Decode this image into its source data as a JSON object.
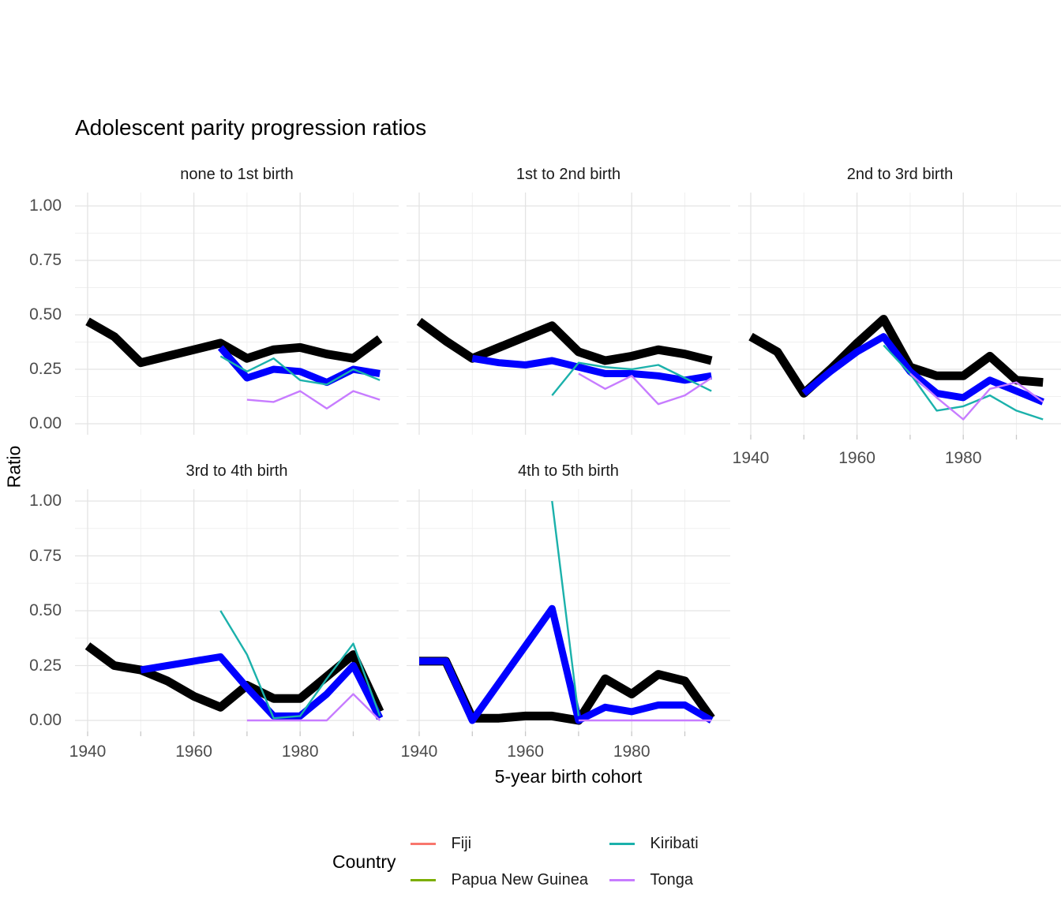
{
  "title": "Adolescent parity progression ratios",
  "axes": {
    "y_title": "Ratio",
    "x_title": "5-year birth cohort",
    "y_tick_labels": [
      "1.00",
      "0.75",
      "0.50",
      "0.25",
      "0.00"
    ],
    "x_tick_labels": [
      "1940",
      "1960",
      "1980"
    ]
  },
  "legend": {
    "title": "Country",
    "entries": [
      {
        "label": "Fiji",
        "color": "#f8766d"
      },
      {
        "label": "Papua New Guinea",
        "color": "#7cae00"
      },
      {
        "label": "Kiribati",
        "color": "#1bb1ab"
      },
      {
        "label": "Tonga",
        "color": "#c77cff"
      }
    ]
  },
  "chart_data": {
    "type": "line",
    "x": [
      1940,
      1945,
      1950,
      1955,
      1960,
      1965,
      1970,
      1975,
      1980,
      1985,
      1990,
      1995
    ],
    "xlabel": "5-year birth cohort",
    "ylabel": "Ratio",
    "ylim": [
      0,
      1
    ],
    "x_breaks": [
      1940,
      1960,
      1980
    ],
    "y_breaks": [
      0,
      0.25,
      0.5,
      0.75,
      1
    ],
    "grid": "major and minor, light gray on white",
    "legend_position": "bottom",
    "facets": [
      {
        "label": "none to 1st birth",
        "series": [
          {
            "name": "black-line",
            "color": "#000000",
            "width": 11,
            "values": [
              0.47,
              0.4,
              0.28,
              0.31,
              0.34,
              0.37,
              0.3,
              0.34,
              0.35,
              0.32,
              0.3,
              0.39
            ]
          },
          {
            "name": "blue-line",
            "color": "#0000ff",
            "width": 9,
            "values": [
              null,
              null,
              null,
              null,
              null,
              0.35,
              0.21,
              0.25,
              0.24,
              0.19,
              0.25,
              0.23
            ]
          },
          {
            "name": "Kiribati",
            "color": "#1bb1ab",
            "width": 2.4,
            "values": [
              null,
              null,
              null,
              null,
              null,
              0.31,
              0.24,
              0.3,
              0.2,
              0.18,
              0.25,
              0.2
            ]
          },
          {
            "name": "Tonga",
            "color": "#c77cff",
            "width": 2.4,
            "values": [
              null,
              null,
              null,
              null,
              null,
              null,
              0.11,
              0.1,
              0.15,
              0.07,
              0.15,
              0.11
            ]
          }
        ]
      },
      {
        "label": "1st to 2nd birth",
        "series": [
          {
            "name": "black-line",
            "color": "#000000",
            "width": 11,
            "values": [
              0.47,
              0.38,
              0.3,
              0.35,
              0.4,
              0.45,
              0.33,
              0.29,
              0.31,
              0.34,
              0.32,
              0.29
            ]
          },
          {
            "name": "blue-line",
            "color": "#0000ff",
            "width": 9,
            "values": [
              null,
              null,
              0.3,
              0.28,
              0.27,
              0.29,
              0.26,
              0.23,
              0.23,
              0.22,
              0.2,
              0.22
            ]
          },
          {
            "name": "Kiribati",
            "color": "#1bb1ab",
            "width": 2.4,
            "values": [
              null,
              null,
              null,
              null,
              null,
              0.13,
              0.28,
              0.26,
              0.25,
              0.27,
              0.21,
              0.15
            ]
          },
          {
            "name": "Tonga",
            "color": "#c77cff",
            "width": 2.4,
            "values": [
              null,
              null,
              null,
              null,
              null,
              null,
              0.23,
              0.16,
              0.22,
              0.09,
              0.13,
              0.21
            ]
          }
        ]
      },
      {
        "label": "2nd to 3rd birth",
        "series": [
          {
            "name": "black-line",
            "color": "#000000",
            "width": 11,
            "values": [
              0.4,
              0.33,
              0.14,
              0.25,
              0.37,
              0.48,
              0.26,
              0.22,
              0.22,
              0.31,
              0.2,
              0.19
            ]
          },
          {
            "name": "blue-line",
            "color": "#0000ff",
            "width": 9,
            "values": [
              null,
              null,
              0.14,
              0.24,
              0.33,
              0.4,
              0.24,
              0.14,
              0.12,
              0.2,
              0.15,
              0.1
            ]
          },
          {
            "name": "Kiribati",
            "color": "#1bb1ab",
            "width": 2.4,
            "values": [
              null,
              null,
              null,
              null,
              null,
              0.36,
              0.23,
              0.06,
              0.08,
              0.13,
              0.06,
              0.02
            ]
          },
          {
            "name": "Tonga",
            "color": "#c77cff",
            "width": 2.4,
            "values": [
              null,
              null,
              null,
              null,
              null,
              null,
              0.23,
              0.12,
              0.02,
              0.16,
              0.19,
              0.1
            ]
          }
        ]
      },
      {
        "label": "3rd to 4th birth",
        "series": [
          {
            "name": "black-line",
            "color": "#000000",
            "width": 11,
            "values": [
              0.34,
              0.25,
              0.23,
              0.18,
              0.11,
              0.06,
              0.16,
              0.1,
              0.1,
              0.2,
              0.3,
              0.04
            ]
          },
          {
            "name": "blue-line",
            "color": "#0000ff",
            "width": 9,
            "values": [
              null,
              null,
              0.23,
              0.25,
              0.27,
              0.29,
              0.15,
              0.02,
              0.02,
              0.12,
              0.25,
              0.01
            ]
          },
          {
            "name": "Kiribati",
            "color": "#1bb1ab",
            "width": 2.4,
            "values": [
              null,
              null,
              null,
              null,
              null,
              0.5,
              0.3,
              0.01,
              0.02,
              0.19,
              0.35,
              0.02
            ]
          },
          {
            "name": "Tonga",
            "color": "#c77cff",
            "width": 2.4,
            "values": [
              null,
              null,
              null,
              null,
              null,
              null,
              0.0,
              0.0,
              0.0,
              0.0,
              0.12,
              0.0
            ]
          }
        ]
      },
      {
        "label": "4th to 5th birth",
        "series": [
          {
            "name": "black-line",
            "color": "#000000",
            "width": 11,
            "values": [
              0.27,
              0.27,
              0.01,
              0.01,
              0.02,
              0.02,
              0.0,
              0.19,
              0.12,
              0.21,
              0.18,
              0.01
            ]
          },
          {
            "name": "blue-line",
            "color": "#0000ff",
            "width": 9,
            "values": [
              0.27,
              0.27,
              0.0,
              0.17,
              0.34,
              0.51,
              0.0,
              0.06,
              0.04,
              0.07,
              0.07,
              0.0
            ]
          },
          {
            "name": "Kiribati",
            "color": "#1bb1ab",
            "width": 2.4,
            "values": [
              null,
              null,
              null,
              null,
              null,
              1.0,
              0.02,
              null,
              null,
              null,
              null,
              null
            ]
          },
          {
            "name": "Tonga",
            "color": "#c77cff",
            "width": 2.4,
            "values": [
              null,
              null,
              null,
              null,
              null,
              null,
              0.0,
              0.0,
              0.0,
              0.0,
              0.0,
              0.0
            ]
          }
        ]
      }
    ]
  }
}
